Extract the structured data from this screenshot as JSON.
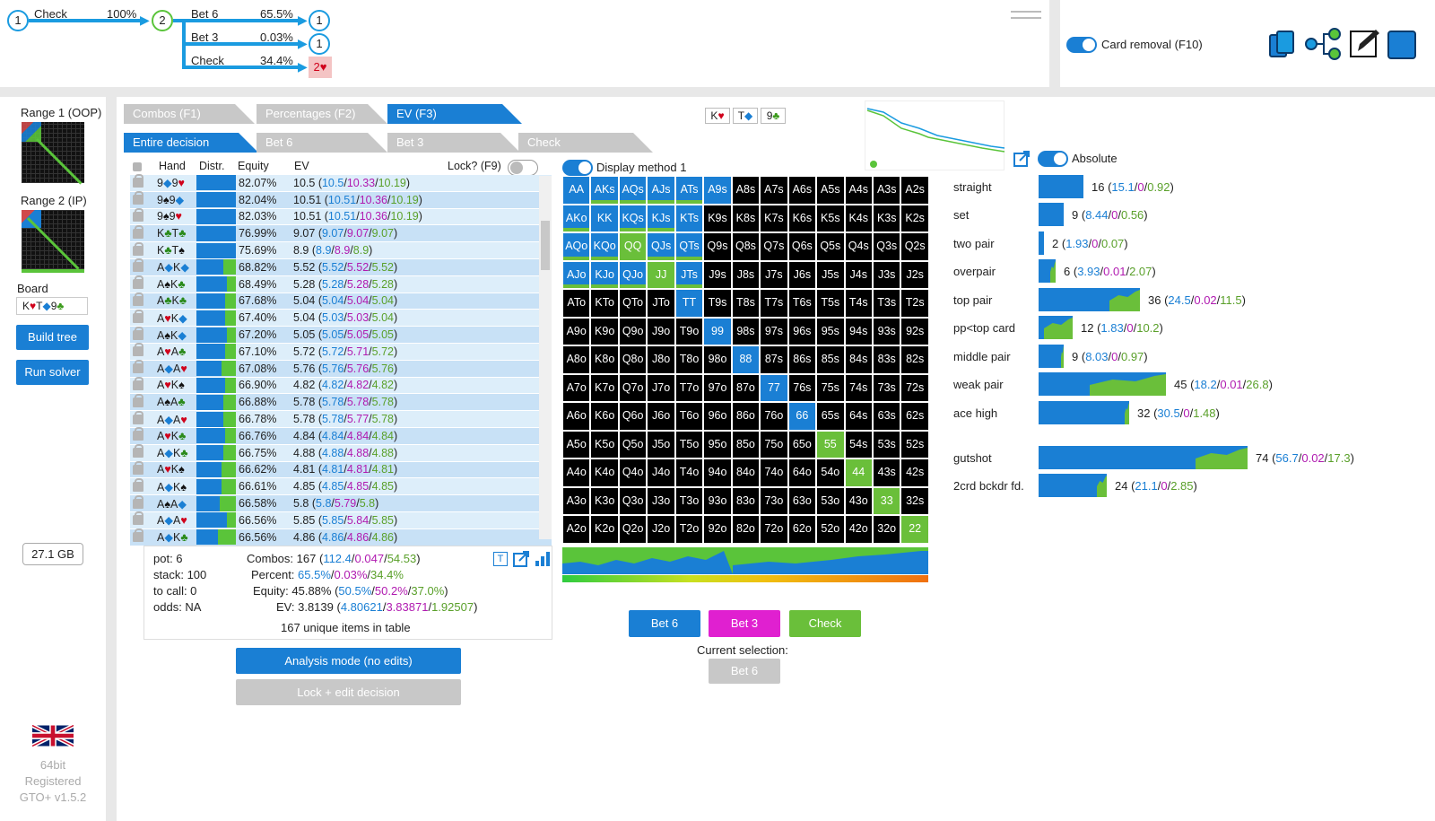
{
  "tree": {
    "root_node": "1",
    "root_action": "Check",
    "root_pct": "100%",
    "mid_node": "2",
    "branches": [
      {
        "label": "Bet 6",
        "pct": "65.5%",
        "node": "1"
      },
      {
        "label": "Bet 3",
        "pct": "0.03%",
        "node": "1"
      },
      {
        "label": "Check",
        "pct": "34.4%",
        "node": "2♥"
      }
    ]
  },
  "top_right": {
    "card_removal": "Card removal (F10)"
  },
  "sidebar": {
    "range1": "Range 1 (OOP)",
    "range2": "Range 2 (IP)",
    "board_label": "Board",
    "board": [
      {
        "r": "K",
        "s": "♥",
        "c": "#d0021b"
      },
      {
        "r": "T",
        "s": "◆",
        "c": "#1a7fd4"
      },
      {
        "r": "9",
        "s": "♣",
        "c": "#3a9a1a"
      }
    ],
    "build_tree": "Build tree",
    "run_solver": "Run solver",
    "memory": "27.1 GB",
    "bits": "64bit",
    "registered": "Registered",
    "version": "GTO+ v1.5.2"
  },
  "tabs": {
    "t1": "Combos (F1)",
    "t2": "Percentages (F2)",
    "t3": "EV (F3)"
  },
  "subtabs": {
    "s1": "Entire decision",
    "s2": "Bet 6",
    "s3": "Bet 3",
    "s4": "Check"
  },
  "board_cards": [
    {
      "r": "K",
      "s": "♥",
      "c": "#d0021b"
    },
    {
      "r": "T",
      "s": "◆",
      "c": "#1a7fd4"
    },
    {
      "r": "9",
      "s": "♣",
      "c": "#3a9a1a"
    }
  ],
  "table": {
    "headers": {
      "hand": "Hand",
      "distr": "Distr.",
      "equity": "Equity",
      "ev": "EV",
      "lock": "Lock? (F9)"
    },
    "rows": [
      {
        "c1": "9",
        "s1": "◆",
        "k1": "b",
        "c2": "9",
        "s2": "♥",
        "k2": "r",
        "g": 0,
        "eq": "82.07%",
        "ev": "10.5",
        "a": "10.5",
        "b": "10.33",
        "c": "10.19"
      },
      {
        "c1": "9",
        "s1": "♠",
        "k1": "k",
        "c2": "9",
        "s2": "◆",
        "k2": "b",
        "g": 0,
        "eq": "82.04%",
        "ev": "10.51",
        "a": "10.51",
        "b": "10.36",
        "c": "10.19"
      },
      {
        "c1": "9",
        "s1": "♠",
        "k1": "k",
        "c2": "9",
        "s2": "♥",
        "k2": "r",
        "g": 0,
        "eq": "82.03%",
        "ev": "10.51",
        "a": "10.51",
        "b": "10.36",
        "c": "10.19"
      },
      {
        "c1": "K",
        "s1": "♣",
        "k1": "g",
        "c2": "T",
        "s2": "♣",
        "k2": "g",
        "g": 0,
        "eq": "76.99%",
        "ev": "9.07",
        "a": "9.07",
        "b": "9.07",
        "c": "9.07"
      },
      {
        "c1": "K",
        "s1": "♣",
        "k1": "g",
        "c2": "T",
        "s2": "♠",
        "k2": "k",
        "g": 0,
        "eq": "75.69%",
        "ev": "8.9",
        "a": "8.9",
        "b": "8.9",
        "c": "8.9"
      },
      {
        "c1": "A",
        "s1": "◆",
        "k1": "b",
        "c2": "K",
        "s2": "◆",
        "k2": "b",
        "g": 14,
        "eq": "68.82%",
        "ev": "5.52",
        "a": "5.52",
        "b": "5.52",
        "c": "5.52"
      },
      {
        "c1": "A",
        "s1": "♠",
        "k1": "k",
        "c2": "K",
        "s2": "♣",
        "k2": "g",
        "g": 10,
        "eq": "68.49%",
        "ev": "5.28",
        "a": "5.28",
        "b": "5.28",
        "c": "5.28"
      },
      {
        "c1": "A",
        "s1": "♣",
        "k1": "g",
        "c2": "K",
        "s2": "♣",
        "k2": "g",
        "g": 12,
        "eq": "67.68%",
        "ev": "5.04",
        "a": "5.04",
        "b": "5.04",
        "c": "5.04"
      },
      {
        "c1": "A",
        "s1": "♥",
        "k1": "r",
        "c2": "K",
        "s2": "◆",
        "k2": "b",
        "g": 12,
        "eq": "67.40%",
        "ev": "5.04",
        "a": "5.03",
        "b": "5.03",
        "c": "5.04"
      },
      {
        "c1": "A",
        "s1": "♠",
        "k1": "k",
        "c2": "K",
        "s2": "◆",
        "k2": "b",
        "g": 10,
        "eq": "67.20%",
        "ev": "5.05",
        "a": "5.05",
        "b": "5.05",
        "c": "5.05"
      },
      {
        "c1": "A",
        "s1": "♥",
        "k1": "r",
        "c2": "A",
        "s2": "♣",
        "k2": "g",
        "g": 12,
        "eq": "67.10%",
        "ev": "5.72",
        "a": "5.72",
        "b": "5.71",
        "c": "5.72"
      },
      {
        "c1": "A",
        "s1": "◆",
        "k1": "b",
        "c2": "A",
        "s2": "♥",
        "k2": "r",
        "g": 16,
        "eq": "67.08%",
        "ev": "5.76",
        "a": "5.76",
        "b": "5.76",
        "c": "5.76"
      },
      {
        "c1": "A",
        "s1": "♥",
        "k1": "r",
        "c2": "K",
        "s2": "♠",
        "k2": "k",
        "g": 12,
        "eq": "66.90%",
        "ev": "4.82",
        "a": "4.82",
        "b": "4.82",
        "c": "4.82"
      },
      {
        "c1": "A",
        "s1": "♠",
        "k1": "k",
        "c2": "A",
        "s2": "♣",
        "k2": "g",
        "g": 14,
        "eq": "66.88%",
        "ev": "5.78",
        "a": "5.78",
        "b": "5.78",
        "c": "5.78"
      },
      {
        "c1": "A",
        "s1": "◆",
        "k1": "b",
        "c2": "A",
        "s2": "♥",
        "k2": "r",
        "g": 14,
        "eq": "66.78%",
        "ev": "5.78",
        "a": "5.78",
        "b": "5.77",
        "c": "5.78"
      },
      {
        "c1": "A",
        "s1": "♥",
        "k1": "r",
        "c2": "K",
        "s2": "♣",
        "k2": "g",
        "g": 12,
        "eq": "66.76%",
        "ev": "4.84",
        "a": "4.84",
        "b": "4.84",
        "c": "4.84"
      },
      {
        "c1": "A",
        "s1": "◆",
        "k1": "b",
        "c2": "K",
        "s2": "♣",
        "k2": "g",
        "g": 14,
        "eq": "66.75%",
        "ev": "4.88",
        "a": "4.88",
        "b": "4.88",
        "c": "4.88"
      },
      {
        "c1": "A",
        "s1": "♥",
        "k1": "r",
        "c2": "K",
        "s2": "♠",
        "k2": "k",
        "g": 16,
        "eq": "66.62%",
        "ev": "4.81",
        "a": "4.81",
        "b": "4.81",
        "c": "4.81"
      },
      {
        "c1": "A",
        "s1": "◆",
        "k1": "b",
        "c2": "K",
        "s2": "♠",
        "k2": "k",
        "g": 16,
        "eq": "66.61%",
        "ev": "4.85",
        "a": "4.85",
        "b": "4.85",
        "c": "4.85"
      },
      {
        "c1": "A",
        "s1": "♠",
        "k1": "k",
        "c2": "A",
        "s2": "◆",
        "k2": "b",
        "g": 18,
        "eq": "66.58%",
        "ev": "5.8",
        "a": "5.8",
        "b": "5.79",
        "c": "5.8"
      },
      {
        "c1": "A",
        "s1": "◆",
        "k1": "b",
        "c2": "A",
        "s2": "♥",
        "k2": "r",
        "g": 10,
        "eq": "66.56%",
        "ev": "5.85",
        "a": "5.85",
        "b": "5.84",
        "c": "5.85"
      },
      {
        "c1": "A",
        "s1": "◆",
        "k1": "b",
        "c2": "K",
        "s2": "♣",
        "k2": "g",
        "g": 20,
        "eq": "66.56%",
        "ev": "4.86",
        "a": "4.86",
        "b": "4.86",
        "c": "4.86"
      }
    ]
  },
  "summary": {
    "pot": "pot: 6",
    "stack": "stack: 100",
    "tocall": "to call: 0",
    "odds": "odds: NA",
    "combos_label": "Combos:",
    "combos_total": "167",
    "combos_a": "112.4",
    "combos_b": "0.047",
    "combos_c": "54.53",
    "percent_label": "Percent:",
    "percent_a": "65.5%",
    "percent_b": "0.03%",
    "percent_c": "34.4%",
    "equity_label": "Equity:",
    "equity_total": "45.88%",
    "equity_a": "50.5%",
    "equity_b": "50.2%",
    "equity_c": "37.0%",
    "ev_label": "EV:",
    "ev_total": "3.8139",
    "ev_a": "4.80621",
    "ev_b": "3.83871",
    "ev_c": "1.92507",
    "unique": "167 unique items in table"
  },
  "analysis_btn": "Analysis mode (no edits)",
  "lock_btn": "Lock + edit decision",
  "display_method": "Display method 1",
  "absolute": "Absolute",
  "grid": [
    [
      "AA",
      "b"
    ],
    [
      "AKs",
      "mix"
    ],
    [
      "AQs",
      "mix"
    ],
    [
      "AJs",
      "mix"
    ],
    [
      "ATs",
      "mix"
    ],
    [
      "A9s",
      "b"
    ],
    [
      "A8s",
      "k"
    ],
    [
      "A7s",
      "k"
    ],
    [
      "A6s",
      "k"
    ],
    [
      "A5s",
      "k"
    ],
    [
      "A4s",
      "k"
    ],
    [
      "A3s",
      "k"
    ],
    [
      "A2s",
      "k"
    ],
    [
      "AKo",
      "mix"
    ],
    [
      "KK",
      "b"
    ],
    [
      "KQs",
      "mix"
    ],
    [
      "KJs",
      "mix"
    ],
    [
      "KTs",
      "b"
    ],
    [
      "K9s",
      "k"
    ],
    [
      "K8s",
      "k"
    ],
    [
      "K7s",
      "k"
    ],
    [
      "K6s",
      "k"
    ],
    [
      "K5s",
      "k"
    ],
    [
      "K4s",
      "k"
    ],
    [
      "K3s",
      "k"
    ],
    [
      "K2s",
      "k"
    ],
    [
      "AQo",
      "mix"
    ],
    [
      "KQo",
      "mix"
    ],
    [
      "QQ",
      "g"
    ],
    [
      "QJs",
      "mix"
    ],
    [
      "QTs",
      "mix"
    ],
    [
      "Q9s",
      "k"
    ],
    [
      "Q8s",
      "k"
    ],
    [
      "Q7s",
      "k"
    ],
    [
      "Q6s",
      "k"
    ],
    [
      "Q5s",
      "k"
    ],
    [
      "Q4s",
      "k"
    ],
    [
      "Q3s",
      "k"
    ],
    [
      "Q2s",
      "k"
    ],
    [
      "AJo",
      "mix"
    ],
    [
      "KJo",
      "mix"
    ],
    [
      "QJo",
      "mix"
    ],
    [
      "JJ",
      "g"
    ],
    [
      "JTs",
      "mix"
    ],
    [
      "J9s",
      "k"
    ],
    [
      "J8s",
      "k"
    ],
    [
      "J7s",
      "k"
    ],
    [
      "J6s",
      "k"
    ],
    [
      "J5s",
      "k"
    ],
    [
      "J4s",
      "k"
    ],
    [
      "J3s",
      "k"
    ],
    [
      "J2s",
      "k"
    ],
    [
      "ATo",
      "k"
    ],
    [
      "KTo",
      "k"
    ],
    [
      "QTo",
      "k"
    ],
    [
      "JTo",
      "k"
    ],
    [
      "TT",
      "b"
    ],
    [
      "T9s",
      "k"
    ],
    [
      "T8s",
      "k"
    ],
    [
      "T7s",
      "k"
    ],
    [
      "T6s",
      "k"
    ],
    [
      "T5s",
      "k"
    ],
    [
      "T4s",
      "k"
    ],
    [
      "T3s",
      "k"
    ],
    [
      "T2s",
      "k"
    ],
    [
      "A9o",
      "k"
    ],
    [
      "K9o",
      "k"
    ],
    [
      "Q9o",
      "k"
    ],
    [
      "J9o",
      "k"
    ],
    [
      "T9o",
      "k"
    ],
    [
      "99",
      "b"
    ],
    [
      "98s",
      "k"
    ],
    [
      "97s",
      "k"
    ],
    [
      "96s",
      "k"
    ],
    [
      "95s",
      "k"
    ],
    [
      "94s",
      "k"
    ],
    [
      "93s",
      "k"
    ],
    [
      "92s",
      "k"
    ],
    [
      "A8o",
      "k"
    ],
    [
      "K8o",
      "k"
    ],
    [
      "Q8o",
      "k"
    ],
    [
      "J8o",
      "k"
    ],
    [
      "T8o",
      "k"
    ],
    [
      "98o",
      "k"
    ],
    [
      "88",
      "b"
    ],
    [
      "87s",
      "k"
    ],
    [
      "86s",
      "k"
    ],
    [
      "85s",
      "k"
    ],
    [
      "84s",
      "k"
    ],
    [
      "83s",
      "k"
    ],
    [
      "82s",
      "k"
    ],
    [
      "A7o",
      "k"
    ],
    [
      "K7o",
      "k"
    ],
    [
      "Q7o",
      "k"
    ],
    [
      "J7o",
      "k"
    ],
    [
      "T7o",
      "k"
    ],
    [
      "97o",
      "k"
    ],
    [
      "87o",
      "k"
    ],
    [
      "77",
      "b"
    ],
    [
      "76s",
      "k"
    ],
    [
      "75s",
      "k"
    ],
    [
      "74s",
      "k"
    ],
    [
      "73s",
      "k"
    ],
    [
      "72s",
      "k"
    ],
    [
      "A6o",
      "k"
    ],
    [
      "K6o",
      "k"
    ],
    [
      "Q6o",
      "k"
    ],
    [
      "J6o",
      "k"
    ],
    [
      "T6o",
      "k"
    ],
    [
      "96o",
      "k"
    ],
    [
      "86o",
      "k"
    ],
    [
      "76o",
      "k"
    ],
    [
      "66",
      "b"
    ],
    [
      "65s",
      "k"
    ],
    [
      "64s",
      "k"
    ],
    [
      "63s",
      "k"
    ],
    [
      "62s",
      "k"
    ],
    [
      "A5o",
      "k"
    ],
    [
      "K5o",
      "k"
    ],
    [
      "Q5o",
      "k"
    ],
    [
      "J5o",
      "k"
    ],
    [
      "T5o",
      "k"
    ],
    [
      "95o",
      "k"
    ],
    [
      "85o",
      "k"
    ],
    [
      "75o",
      "k"
    ],
    [
      "65o",
      "k"
    ],
    [
      "55",
      "g"
    ],
    [
      "54s",
      "k"
    ],
    [
      "53s",
      "k"
    ],
    [
      "52s",
      "k"
    ],
    [
      "A4o",
      "k"
    ],
    [
      "K4o",
      "k"
    ],
    [
      "Q4o",
      "k"
    ],
    [
      "J4o",
      "k"
    ],
    [
      "T4o",
      "k"
    ],
    [
      "94o",
      "k"
    ],
    [
      "84o",
      "k"
    ],
    [
      "74o",
      "k"
    ],
    [
      "64o",
      "k"
    ],
    [
      "54o",
      "k"
    ],
    [
      "44",
      "g"
    ],
    [
      "43s",
      "k"
    ],
    [
      "42s",
      "k"
    ],
    [
      "A3o",
      "k"
    ],
    [
      "K3o",
      "k"
    ],
    [
      "Q3o",
      "k"
    ],
    [
      "J3o",
      "k"
    ],
    [
      "T3o",
      "k"
    ],
    [
      "93o",
      "k"
    ],
    [
      "83o",
      "k"
    ],
    [
      "73o",
      "k"
    ],
    [
      "63o",
      "k"
    ],
    [
      "53o",
      "k"
    ],
    [
      "43o",
      "k"
    ],
    [
      "33",
      "g"
    ],
    [
      "32s",
      "k"
    ],
    [
      "A2o",
      "k"
    ],
    [
      "K2o",
      "k"
    ],
    [
      "Q2o",
      "k"
    ],
    [
      "J2o",
      "k"
    ],
    [
      "T2o",
      "k"
    ],
    [
      "92o",
      "k"
    ],
    [
      "82o",
      "k"
    ],
    [
      "72o",
      "k"
    ],
    [
      "62o",
      "k"
    ],
    [
      "52o",
      "k"
    ],
    [
      "42o",
      "k"
    ],
    [
      "32o",
      "k"
    ],
    [
      "22",
      "g"
    ]
  ],
  "actions": {
    "bet6": "Bet 6",
    "bet3": "Bet 3",
    "check": "Check",
    "current_label": "Current selection:",
    "current_value": "Bet 6"
  },
  "stats": [
    {
      "label": "straight",
      "total": "16",
      "a": "15.1",
      "b": "0",
      "c": "0.92",
      "green": 0
    },
    {
      "label": "set",
      "total": "9",
      "a": "8.44",
      "b": "0",
      "c": "0.56",
      "green": 0
    },
    {
      "label": "two pair",
      "total": "2",
      "a": "1.93",
      "b": "0",
      "c": "0.07",
      "green": 0
    },
    {
      "label": "overpair",
      "total": "6",
      "a": "3.93",
      "b": "0.01",
      "c": "2.07",
      "green": 0.3
    },
    {
      "label": "top pair",
      "total": "36",
      "a": "24.5",
      "b": "0.02",
      "c": "11.5",
      "green": 0.3
    },
    {
      "label": "pp<top card",
      "total": "12",
      "a": "1.83",
      "b": "0",
      "c": "10.2",
      "green": 0.85
    },
    {
      "label": "middle pair",
      "total": "9",
      "a": "8.03",
      "b": "0",
      "c": "0.97",
      "green": 0.1
    },
    {
      "label": "weak pair",
      "total": "45",
      "a": "18.2",
      "b": "0.01",
      "c": "26.8",
      "green": 0.6
    },
    {
      "label": "ace high",
      "total": "32",
      "a": "30.5",
      "b": "0",
      "c": "1.48",
      "green": 0.05
    },
    {
      "label": "gutshot",
      "total": "74",
      "a": "56.7",
      "b": "0.02",
      "c": "17.3",
      "green": 0.25
    },
    {
      "label": "2crd bckdr fd.",
      "total": "24",
      "a": "21.1",
      "b": "0",
      "c": "2.85",
      "green": 0.15
    }
  ],
  "colors": {
    "blue": "#1a7fd4",
    "green": "#6abf3a",
    "magenta": "#e020d0",
    "red": "#d0021b"
  }
}
